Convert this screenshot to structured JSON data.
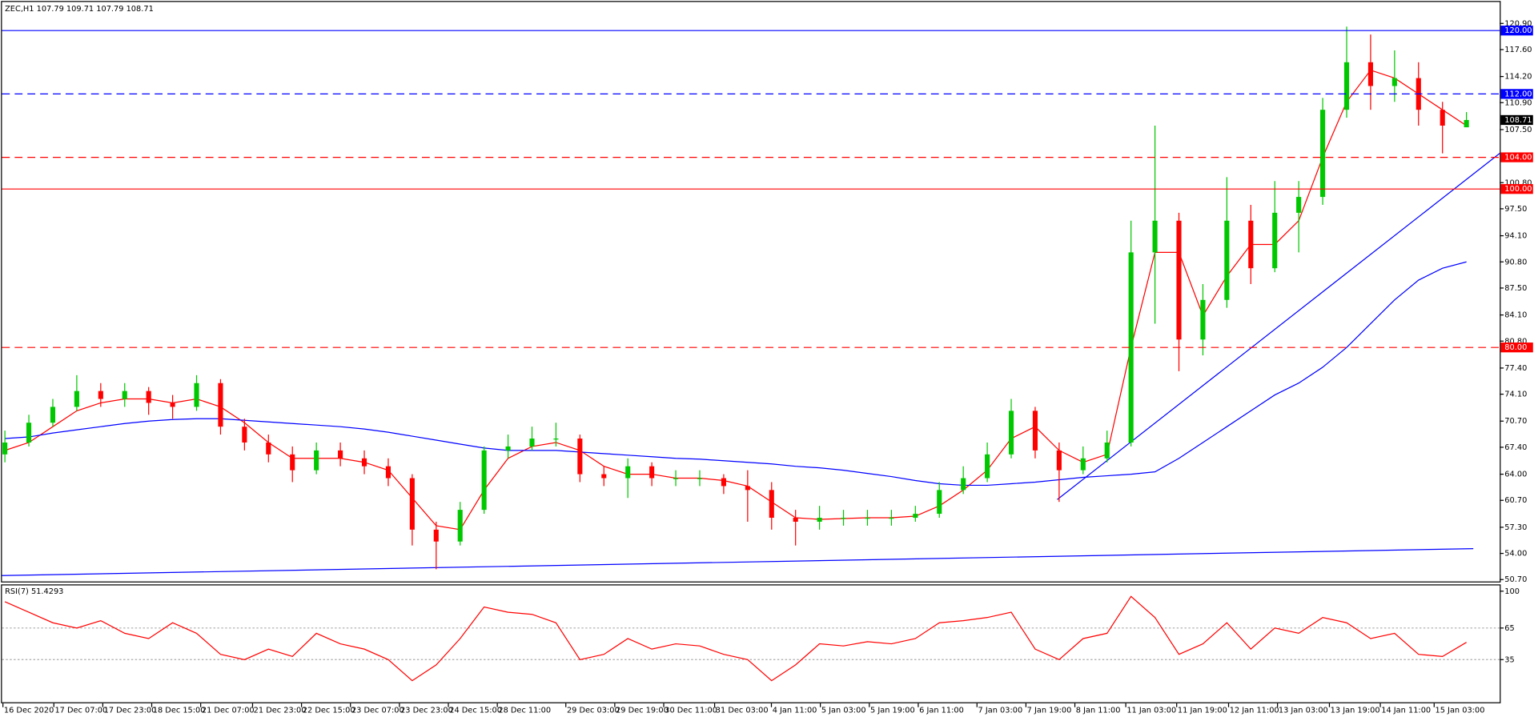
{
  "chart_data": [
    {
      "type": "candlestick",
      "title": "ZEC,H1  107.79 109.71 107.79 108.71",
      "up_color": "#00c800",
      "down_color": "#ff0000",
      "open": [
        66.5,
        68,
        70.5,
        72.5,
        74.5,
        73.5,
        74.5,
        73,
        72.5,
        75.5,
        70,
        68,
        66.5,
        64.5,
        67,
        66,
        65,
        63.5,
        57,
        55.5,
        59.5,
        67,
        67.5,
        68.5,
        68.5,
        64,
        63.5,
        65,
        63.5,
        63.5,
        63.5,
        62.5,
        62,
        58.5,
        58,
        58.5,
        58.5,
        58.5,
        58.5,
        59,
        62,
        63.5,
        66.5,
        72,
        67,
        64.5,
        66,
        68,
        92,
        96,
        81,
        86,
        96,
        90,
        97,
        99,
        110,
        116,
        113,
        114,
        110,
        107.79
      ],
      "high": [
        69.5,
        71.5,
        73.5,
        76.5,
        75.5,
        75.5,
        75,
        74,
        76.5,
        76,
        71,
        69,
        67.5,
        68,
        68,
        67,
        66,
        64,
        58,
        60.5,
        67.5,
        69,
        70,
        70.5,
        69,
        65,
        66,
        65.5,
        64.5,
        64.5,
        64,
        64.5,
        63,
        59.5,
        60,
        59.5,
        59.5,
        59.5,
        60,
        63,
        65,
        68,
        73.5,
        72.5,
        68,
        67.5,
        69.5,
        96,
        108,
        97,
        88,
        101.5,
        98,
        101,
        101,
        111.5,
        120.5,
        119.5,
        117.5,
        116,
        111,
        109.71
      ],
      "low": [
        65.5,
        67.5,
        70,
        72,
        72.5,
        72.5,
        71.5,
        71,
        72,
        69,
        67,
        65.5,
        63,
        64,
        65,
        64,
        62.5,
        55,
        52,
        55,
        59,
        66,
        67,
        67.5,
        63,
        62.5,
        61,
        62.5,
        62.5,
        62.5,
        61.5,
        58,
        57,
        55,
        57,
        57.5,
        57.5,
        57.5,
        58,
        58.5,
        61.5,
        63,
        66,
        66,
        60.5,
        64,
        65.5,
        67.5,
        83,
        77,
        79,
        85,
        88,
        89.5,
        92,
        98,
        109,
        110,
        111,
        108,
        104.5,
        107.79
      ],
      "close": [
        68,
        70.5,
        72.5,
        74.5,
        73.5,
        74.5,
        73,
        72.5,
        75.5,
        70,
        68,
        66.5,
        64.5,
        67,
        66,
        65,
        63.5,
        57,
        55.5,
        59.5,
        67,
        67.5,
        68.5,
        68.5,
        64,
        63.5,
        65,
        63.5,
        63.5,
        63.5,
        62.5,
        62,
        58.5,
        58,
        58.5,
        58.5,
        58.5,
        58.5,
        59,
        62,
        63.5,
        66.5,
        72,
        67,
        64.5,
        66,
        68,
        92,
        96,
        81,
        86,
        96,
        90,
        97,
        99,
        110,
        116,
        113,
        114,
        110,
        108,
        108.71
      ],
      "overlays": [
        {
          "color": "#ff0000",
          "values": [
            67,
            68,
            70,
            72,
            73,
            73.5,
            73.5,
            73,
            73.5,
            72.5,
            70.5,
            68,
            66,
            66,
            66,
            65.5,
            64.5,
            61,
            57.5,
            57,
            62,
            66,
            67.5,
            68,
            67,
            65,
            64,
            64,
            63.5,
            63.5,
            63.2,
            62.5,
            60.5,
            58.5,
            58.3,
            58.4,
            58.5,
            58.5,
            58.7,
            60,
            62,
            64.5,
            68.5,
            70,
            67,
            65.5,
            66.5,
            80,
            92,
            92,
            84,
            89,
            93,
            93,
            96,
            104,
            111,
            115,
            114,
            112,
            110,
            108
          ]
        },
        {
          "color": "#0000ff",
          "values": [
            68.5,
            68.7,
            69.2,
            69.6,
            70,
            70.4,
            70.7,
            70.9,
            71,
            71,
            70.8,
            70.6,
            70.4,
            70.2,
            70,
            69.7,
            69.3,
            68.8,
            68.3,
            67.8,
            67.3,
            67,
            67,
            67,
            66.8,
            66.6,
            66.4,
            66.2,
            66,
            65.9,
            65.7,
            65.5,
            65.3,
            65,
            64.8,
            64.5,
            64.1,
            63.7,
            63.2,
            62.8,
            62.6,
            62.6,
            62.8,
            63,
            63.3,
            63.6,
            63.8,
            64,
            64.3,
            66,
            68,
            70,
            72,
            74,
            75.5,
            77.5,
            80,
            83,
            86,
            88.5,
            90,
            90.8
          ]
        }
      ],
      "lines": [
        {
          "color": "#0000ff",
          "values": [
            51.2,
            54.6
          ]
        },
        {
          "color": "#0000ff",
          "values": [
            60.8,
            104.5
          ]
        }
      ],
      "levels": [
        {
          "value": 120,
          "label": "120.00",
          "color": "#0000ff",
          "dash": false
        },
        {
          "value": 112,
          "label": "112.00",
          "color": "#0000ff",
          "dash": true
        },
        {
          "value": 104,
          "label": "104.00",
          "color": "#ff0000",
          "dash": true
        },
        {
          "value": 100,
          "label": "100.00",
          "color": "#ff0000",
          "dash": false
        },
        {
          "value": 80,
          "label": "80.00",
          "color": "#ff0000",
          "dash": true
        }
      ],
      "current": {
        "value": 108.71,
        "label": "108.71"
      },
      "ylim": [
        50.46,
        123.61
      ],
      "yticks": [
        {
          "value": 120.9,
          "label": "120.90"
        },
        {
          "value": 117.6,
          "label": "117.60"
        },
        {
          "value": 114.2,
          "label": "114.20"
        },
        {
          "value": 110.9,
          "label": "110.90"
        },
        {
          "value": 107.5,
          "label": "107.50"
        },
        {
          "value": 100.8,
          "label": "100.80"
        },
        {
          "value": 97.5,
          "label": "97.50"
        },
        {
          "value": 94.1,
          "label": "94.10"
        },
        {
          "value": 90.8,
          "label": "90.80"
        },
        {
          "value": 87.5,
          "label": "87.50"
        },
        {
          "value": 84.1,
          "label": "84.10"
        },
        {
          "value": 80.8,
          "label": "80.80"
        },
        {
          "value": 77.4,
          "label": "77.40"
        },
        {
          "value": 74.1,
          "label": "74.10"
        },
        {
          "value": 70.7,
          "label": "70.70"
        },
        {
          "value": 67.4,
          "label": "67.40"
        },
        {
          "value": 64,
          "label": "64.00"
        },
        {
          "value": 60.7,
          "label": "60.70"
        },
        {
          "value": 57.3,
          "label": "57.30"
        },
        {
          "value": 54,
          "label": "54.00"
        },
        {
          "value": 50.7,
          "label": "50.70"
        }
      ],
      "categories": [
        "16 Dec 2020",
        "17 Dec 07:00",
        "17 Dec 23:00",
        "18 Dec 15:00",
        "21 Dec 07:00",
        "21 Dec 23:00",
        "22 Dec 15:00",
        "23 Dec 07:00",
        "23 Dec 23:00",
        "24 Dec 15:00",
        "28 Dec 11:00",
        "29 Dec 03:00",
        "29 Dec 19:00",
        "30 Dec 11:00",
        "31 Dec 03:00",
        "4 Jan 11:00",
        "5 Jan 03:00",
        "5 Jan 19:00",
        "6 Jan 11:00",
        "7 Jan 03:00",
        "7 Jan 19:00",
        "8 Jan 11:00",
        "11 Jan 03:00",
        "11 Jan 19:00",
        "12 Jan 11:00",
        "13 Jan 03:00",
        "13 Jan 19:00",
        "14 Jan 11:00",
        "15 Jan 03:00"
      ]
    },
    {
      "type": "line",
      "title": "RSI(7) 51.4293",
      "color": "#ff0000",
      "values": [
        90,
        80,
        70,
        65,
        72,
        60,
        55,
        70,
        60,
        40,
        35,
        45,
        38,
        60,
        50,
        45,
        35,
        15,
        30,
        55,
        85,
        80,
        78,
        70,
        35,
        40,
        55,
        45,
        50,
        48,
        40,
        35,
        15,
        30,
        50,
        48,
        52,
        50,
        55,
        70,
        72,
        75,
        80,
        45,
        35,
        55,
        60,
        95,
        75,
        40,
        50,
        70,
        45,
        65,
        60,
        75,
        70,
        55,
        60,
        40,
        38,
        51.4293
      ],
      "ylim": [
        -5.5,
        105.5
      ],
      "yticks": [
        100,
        65,
        35
      ],
      "levels": [
        65,
        35
      ]
    }
  ]
}
